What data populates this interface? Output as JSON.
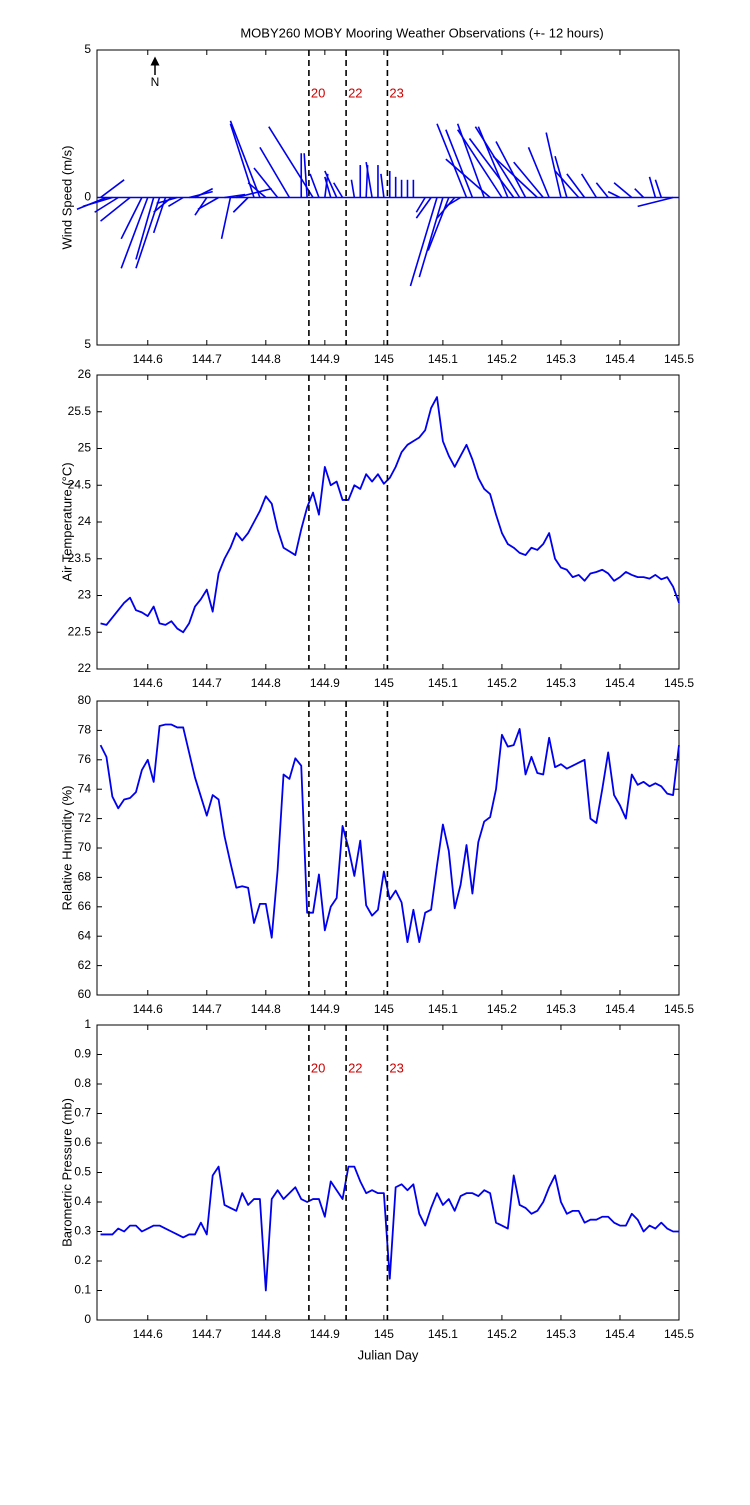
{
  "chart_data": [
    {
      "type": "stick",
      "title": "MOBY260 MOBY Mooring Weather Observations (+- 12 hours)",
      "y_label": "Wind Speed (m/s)",
      "north_label": "N",
      "color": "#0000ee",
      "xlim": [
        144.514,
        145.5
      ],
      "xticks": [
        144.6,
        144.7,
        144.8,
        144.9,
        145,
        145.1,
        145.2,
        145.3,
        145.4,
        145.5
      ],
      "ylim": [
        -5,
        5
      ],
      "yticks": [
        {
          "value": -5,
          "label": "5"
        },
        0,
        5
      ],
      "markers": {
        "x": [
          144.873,
          144.936,
          145.006
        ],
        "labels": [
          "20",
          "22",
          "23"
        ]
      },
      "x": [
        144.52,
        144.53,
        144.54,
        144.55,
        144.57,
        144.59,
        144.6,
        144.61,
        144.62,
        144.63,
        144.64,
        144.65,
        144.66,
        144.67,
        144.68,
        144.7,
        144.72,
        144.73,
        144.74,
        144.75,
        144.77,
        144.78,
        144.79,
        144.8,
        144.82,
        144.84,
        144.86,
        144.87,
        144.88,
        144.89,
        144.9,
        144.91,
        144.92,
        144.93,
        144.95,
        144.96,
        144.97,
        144.98,
        144.99,
        145.0,
        145.01,
        145.02,
        145.03,
        145.04,
        145.05,
        145.07,
        145.08,
        145.09,
        145.1,
        145.11,
        145.12,
        145.13,
        145.14,
        145.15,
        145.17,
        145.18,
        145.2,
        145.21,
        145.22,
        145.23,
        145.24,
        145.26,
        145.27,
        145.28,
        145.3,
        145.31,
        145.33,
        145.34,
        145.36,
        145.38,
        145.4,
        145.42,
        145.44,
        145.46,
        145.47,
        145.49
      ],
      "u": [
        0.8,
        -1.0,
        -1.0,
        -0.8,
        -1.0,
        -0.7,
        -0.9,
        -0.6,
        -0.8,
        -0.4,
        -0.6,
        -0.7,
        -0.5,
        0.8,
        0.6,
        -0.4,
        -0.7,
        0.7,
        -0.3,
        1.2,
        -0.5,
        -0.8,
        -1.0,
        -0.6,
        -0.8,
        -1.0,
        0.0,
        -0.1,
        -1.5,
        -0.3,
        0.1,
        -0.2,
        -0.4,
        -0.3,
        -0.1,
        0.0,
        0.05,
        -0.2,
        0.0,
        -0.1,
        0.0,
        0.0,
        0.0,
        0.0,
        0.0,
        -0.3,
        -0.5,
        -0.9,
        -0.8,
        -0.7,
        -0.6,
        -0.5,
        -1.0,
        -0.9,
        -0.9,
        -1.5,
        -1.5,
        -1.0,
        -1.5,
        -1.5,
        -1.0,
        -1.5,
        -1.0,
        -0.7,
        -0.5,
        -0.4,
        -0.8,
        -0.6,
        -0.5,
        -0.4,
        -0.4,
        -0.6,
        -0.3,
        -0.2,
        -0.2,
        -1.2
      ],
      "v": [
        0.6,
        -0.4,
        -0.3,
        -0.5,
        -0.8,
        -1.4,
        -2.4,
        -2.1,
        -2.4,
        -1.2,
        -0.5,
        -0.2,
        -0.3,
        0.2,
        0.3,
        -0.6,
        -0.4,
        0.1,
        -1.4,
        0.3,
        -0.5,
        2.5,
        2.6,
        0.5,
        1.0,
        1.7,
        1.5,
        1.5,
        2.4,
        0.8,
        0.8,
        0.7,
        0.9,
        0.5,
        0.6,
        1.1,
        1.1,
        1.2,
        1.1,
        0.8,
        0.9,
        0.7,
        0.6,
        0.6,
        0.6,
        -0.5,
        -0.7,
        -3.0,
        -2.7,
        -1.8,
        -0.7,
        -0.3,
        2.5,
        2.3,
        2.5,
        1.3,
        2.3,
        2.4,
        2.0,
        2.4,
        1.9,
        1.4,
        1.2,
        1.7,
        2.2,
        1.4,
        0.9,
        0.8,
        0.8,
        0.5,
        0.2,
        0.5,
        0.3,
        0.7,
        0.6,
        -0.3
      ]
    },
    {
      "type": "line",
      "y_label": "Air Temperature (°C)",
      "color": "#0000ee",
      "xlim": [
        144.514,
        145.5
      ],
      "xticks": [
        144.6,
        144.7,
        144.8,
        144.9,
        145,
        145.1,
        145.2,
        145.3,
        145.4,
        145.5
      ],
      "ylim": [
        22,
        26
      ],
      "yticks": [
        22,
        22.5,
        23,
        23.5,
        24,
        24.5,
        25,
        25.5,
        26
      ],
      "markers": {
        "x": [
          144.873,
          144.936,
          145.006
        ]
      },
      "x": [
        144.52,
        144.53,
        144.54,
        144.55,
        144.56,
        144.57,
        144.58,
        144.59,
        144.6,
        144.61,
        144.62,
        144.63,
        144.64,
        144.65,
        144.66,
        144.67,
        144.68,
        144.69,
        144.7,
        144.71,
        144.72,
        144.73,
        144.74,
        144.75,
        144.76,
        144.77,
        144.78,
        144.79,
        144.8,
        144.81,
        144.82,
        144.83,
        144.84,
        144.85,
        144.86,
        144.87,
        144.88,
        144.89,
        144.9,
        144.91,
        144.92,
        144.93,
        144.94,
        144.95,
        144.96,
        144.97,
        144.98,
        144.99,
        145.0,
        145.01,
        145.02,
        145.03,
        145.04,
        145.05,
        145.06,
        145.07,
        145.08,
        145.09,
        145.1,
        145.11,
        145.12,
        145.13,
        145.14,
        145.15,
        145.16,
        145.17,
        145.18,
        145.19,
        145.2,
        145.21,
        145.22,
        145.23,
        145.24,
        145.25,
        145.26,
        145.27,
        145.28,
        145.29,
        145.3,
        145.31,
        145.32,
        145.33,
        145.34,
        145.35,
        145.36,
        145.37,
        145.38,
        145.39,
        145.4,
        145.41,
        145.42,
        145.43,
        145.44,
        145.45,
        145.46,
        145.47,
        145.48,
        145.49,
        145.5
      ],
      "values": [
        22.62,
        22.6,
        22.7,
        22.8,
        22.9,
        22.97,
        22.8,
        22.77,
        22.72,
        22.85,
        22.62,
        22.6,
        22.65,
        22.55,
        22.5,
        22.62,
        22.85,
        22.95,
        23.08,
        22.78,
        23.3,
        23.5,
        23.65,
        23.85,
        23.75,
        23.85,
        24.0,
        24.15,
        24.35,
        24.25,
        23.9,
        23.65,
        23.6,
        23.55,
        23.9,
        24.2,
        24.4,
        24.1,
        24.75,
        24.5,
        24.55,
        24.3,
        24.3,
        24.5,
        24.45,
        24.65,
        24.55,
        24.65,
        24.52,
        24.6,
        24.75,
        24.95,
        25.05,
        25.1,
        25.15,
        25.25,
        25.55,
        25.7,
        25.1,
        24.9,
        24.75,
        24.9,
        25.05,
        24.85,
        24.6,
        24.45,
        24.38,
        24.1,
        23.85,
        23.7,
        23.65,
        23.58,
        23.55,
        23.65,
        23.62,
        23.7,
        23.85,
        23.5,
        23.38,
        23.35,
        23.25,
        23.28,
        23.2,
        23.3,
        23.32,
        23.35,
        23.3,
        23.2,
        23.25,
        23.32,
        23.28,
        23.25,
        23.25,
        23.23,
        23.28,
        23.22,
        23.25,
        23.12,
        22.9
      ]
    },
    {
      "type": "line",
      "y_label": "Relative Humidity (%)",
      "color": "#0000ee",
      "xlim": [
        144.514,
        145.5
      ],
      "xticks": [
        144.6,
        144.7,
        144.8,
        144.9,
        145,
        145.1,
        145.2,
        145.3,
        145.4,
        145.5
      ],
      "ylim": [
        60,
        80
      ],
      "yticks": [
        60,
        62,
        64,
        66,
        68,
        70,
        72,
        74,
        76,
        78,
        80
      ],
      "markers": {
        "x": [
          144.873,
          144.936,
          145.006
        ]
      },
      "x": [
        144.52,
        144.53,
        144.54,
        144.55,
        144.56,
        144.57,
        144.58,
        144.59,
        144.6,
        144.61,
        144.62,
        144.63,
        144.64,
        144.65,
        144.66,
        144.67,
        144.68,
        144.69,
        144.7,
        144.71,
        144.72,
        144.73,
        144.74,
        144.75,
        144.76,
        144.77,
        144.78,
        144.79,
        144.8,
        144.81,
        144.82,
        144.83,
        144.84,
        144.85,
        144.86,
        144.87,
        144.88,
        144.89,
        144.9,
        144.91,
        144.92,
        144.93,
        144.94,
        144.95,
        144.96,
        144.97,
        144.98,
        144.99,
        145.0,
        145.01,
        145.02,
        145.03,
        145.04,
        145.05,
        145.06,
        145.07,
        145.08,
        145.09,
        145.1,
        145.11,
        145.12,
        145.13,
        145.14,
        145.15,
        145.16,
        145.17,
        145.18,
        145.19,
        145.2,
        145.21,
        145.22,
        145.23,
        145.24,
        145.25,
        145.26,
        145.27,
        145.28,
        145.29,
        145.3,
        145.31,
        145.32,
        145.33,
        145.34,
        145.35,
        145.36,
        145.37,
        145.38,
        145.39,
        145.4,
        145.41,
        145.42,
        145.43,
        145.44,
        145.45,
        145.46,
        145.47,
        145.48,
        145.49,
        145.5
      ],
      "values": [
        77.0,
        76.2,
        73.5,
        72.7,
        73.3,
        73.4,
        73.8,
        75.3,
        76.0,
        74.5,
        78.3,
        78.4,
        78.4,
        78.2,
        78.2,
        76.5,
        74.8,
        73.5,
        72.2,
        73.6,
        73.3,
        70.8,
        69.0,
        67.3,
        67.4,
        67.3,
        64.9,
        66.2,
        66.2,
        63.9,
        68.5,
        75.0,
        74.7,
        76.1,
        75.6,
        65.6,
        65.6,
        68.2,
        64.4,
        66.0,
        66.6,
        71.5,
        70.0,
        68.1,
        70.5,
        66.1,
        65.4,
        65.8,
        68.4,
        66.5,
        67.1,
        66.3,
        63.6,
        65.8,
        63.6,
        65.6,
        65.8,
        68.8,
        71.6,
        69.8,
        65.9,
        67.5,
        70.2,
        66.9,
        70.4,
        71.8,
        72.1,
        74.0,
        77.7,
        76.9,
        77.0,
        78.1,
        75.0,
        76.2,
        75.1,
        75.0,
        77.5,
        75.5,
        75.7,
        75.4,
        75.6,
        75.8,
        76.0,
        72.0,
        71.7,
        74.0,
        76.5,
        73.6,
        72.9,
        72.0,
        75.0,
        74.3,
        74.5,
        74.2,
        74.4,
        74.2,
        73.7,
        73.6,
        77.0
      ]
    },
    {
      "type": "line",
      "y_label": "Barometric Pressure (mb)",
      "x_label": "Julian Day",
      "color": "#0000ee",
      "xlim": [
        144.514,
        145.5
      ],
      "xticks": [
        144.6,
        144.7,
        144.8,
        144.9,
        145,
        145.1,
        145.2,
        145.3,
        145.4,
        145.5
      ],
      "ylim": [
        0,
        1
      ],
      "yticks": [
        0,
        0.1,
        0.2,
        0.3,
        0.4,
        0.5,
        0.6,
        0.7,
        0.8,
        0.9,
        1
      ],
      "markers": {
        "x": [
          144.873,
          144.936,
          145.006
        ],
        "labels": [
          "20",
          "22",
          "23"
        ]
      },
      "x": [
        144.52,
        144.53,
        144.54,
        144.55,
        144.56,
        144.57,
        144.58,
        144.59,
        144.6,
        144.61,
        144.62,
        144.63,
        144.64,
        144.65,
        144.66,
        144.67,
        144.68,
        144.69,
        144.7,
        144.71,
        144.72,
        144.73,
        144.74,
        144.75,
        144.76,
        144.77,
        144.78,
        144.79,
        144.8,
        144.81,
        144.82,
        144.83,
        144.84,
        144.85,
        144.86,
        144.87,
        144.88,
        144.89,
        144.9,
        144.91,
        144.92,
        144.93,
        144.94,
        144.95,
        144.96,
        144.97,
        144.98,
        144.99,
        145.0,
        145.01,
        145.02,
        145.03,
        145.04,
        145.05,
        145.06,
        145.07,
        145.08,
        145.09,
        145.1,
        145.11,
        145.12,
        145.13,
        145.14,
        145.15,
        145.16,
        145.17,
        145.18,
        145.19,
        145.2,
        145.21,
        145.22,
        145.23,
        145.24,
        145.25,
        145.26,
        145.27,
        145.28,
        145.29,
        145.3,
        145.31,
        145.32,
        145.33,
        145.34,
        145.35,
        145.36,
        145.37,
        145.38,
        145.39,
        145.4,
        145.41,
        145.42,
        145.43,
        145.44,
        145.45,
        145.46,
        145.47,
        145.48,
        145.49,
        145.5
      ],
      "values": [
        0.29,
        0.29,
        0.29,
        0.31,
        0.3,
        0.32,
        0.32,
        0.3,
        0.31,
        0.32,
        0.32,
        0.31,
        0.3,
        0.29,
        0.28,
        0.29,
        0.29,
        0.33,
        0.29,
        0.49,
        0.52,
        0.39,
        0.38,
        0.37,
        0.43,
        0.39,
        0.41,
        0.41,
        0.1,
        0.41,
        0.44,
        0.41,
        0.43,
        0.45,
        0.41,
        0.4,
        0.41,
        0.41,
        0.35,
        0.47,
        0.44,
        0.41,
        0.52,
        0.52,
        0.47,
        0.43,
        0.44,
        0.43,
        0.43,
        0.14,
        0.45,
        0.46,
        0.44,
        0.46,
        0.36,
        0.32,
        0.38,
        0.43,
        0.39,
        0.41,
        0.37,
        0.42,
        0.43,
        0.43,
        0.42,
        0.44,
        0.43,
        0.33,
        0.32,
        0.31,
        0.49,
        0.39,
        0.38,
        0.36,
        0.37,
        0.4,
        0.45,
        0.49,
        0.4,
        0.36,
        0.37,
        0.37,
        0.33,
        0.34,
        0.34,
        0.35,
        0.35,
        0.33,
        0.32,
        0.32,
        0.36,
        0.34,
        0.3,
        0.32,
        0.31,
        0.33,
        0.31,
        0.3,
        0.3
      ]
    }
  ]
}
